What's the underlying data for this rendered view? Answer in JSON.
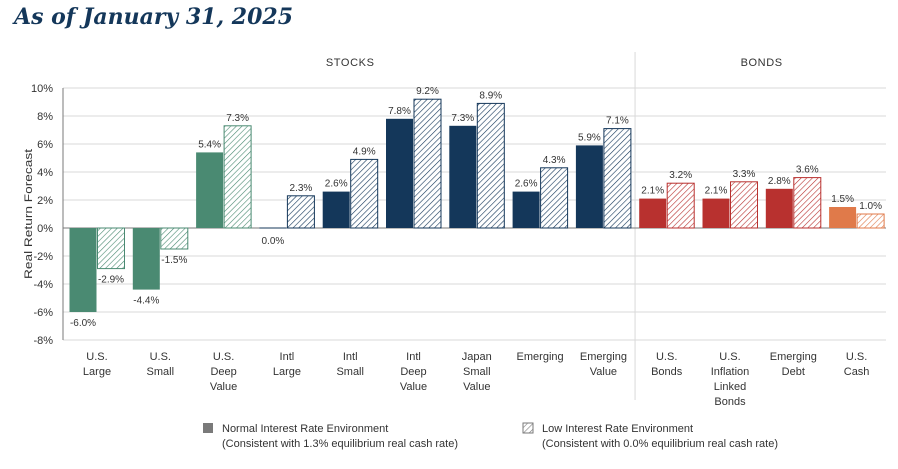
{
  "page_title": "As of January 31, 2025",
  "colors": {
    "us_equity": "#4a8a72",
    "intl_equity": "#14375a",
    "bonds": "#b8312f",
    "cash": "#e07a4a",
    "axis": "#7a7a7a",
    "grid": "#d9d9d9"
  },
  "chart_data": {
    "type": "bar",
    "title": "",
    "ylabel": "Real Return Forecast",
    "ylim": [
      -8,
      10
    ],
    "yticks": [
      "10%",
      "8%",
      "6%",
      "4%",
      "2%",
      "0%",
      "-2%",
      "-4%",
      "-6%",
      "-8%"
    ],
    "grid": true,
    "groups": [
      {
        "label": "STOCKS",
        "start": 0,
        "end": 8
      },
      {
        "label": "BONDS",
        "start": 9,
        "end": 12
      }
    ],
    "categories": [
      [
        "U.S.",
        "Large"
      ],
      [
        "U.S.",
        "Small"
      ],
      [
        "U.S.",
        "Deep",
        "Value"
      ],
      [
        "Intl",
        "Large"
      ],
      [
        "Intl",
        "Small"
      ],
      [
        "Intl",
        "Deep",
        "Value"
      ],
      [
        "Japan",
        "Small",
        "Value"
      ],
      [
        "Emerging"
      ],
      [
        "Emerging",
        "Value"
      ],
      [
        "U.S.",
        "Bonds"
      ],
      [
        "U.S.",
        "Inflation",
        "Linked",
        "Bonds"
      ],
      [
        "Emerging",
        "Debt"
      ],
      [
        "U.S.",
        "Cash"
      ]
    ],
    "category_colors": [
      "us_equity",
      "us_equity",
      "us_equity",
      "intl_equity",
      "intl_equity",
      "intl_equity",
      "intl_equity",
      "intl_equity",
      "intl_equity",
      "bonds",
      "bonds",
      "bonds",
      "cash"
    ],
    "series": [
      {
        "name": "Normal Interest Rate Environment",
        "note": "(Consistent with 1.3% equilibrium real cash rate)",
        "pattern": "solid",
        "values": [
          -6.0,
          -4.4,
          5.4,
          0.0,
          2.6,
          7.8,
          7.3,
          2.6,
          5.9,
          2.1,
          2.1,
          2.8,
          1.5
        ],
        "labels": [
          "-6.0%",
          "-4.4%",
          "5.4%",
          "0.0%",
          "2.6%",
          "7.8%",
          "7.3%",
          "2.6%",
          "5.9%",
          "2.1%",
          "2.1%",
          "2.8%",
          "1.5%"
        ]
      },
      {
        "name": "Low Interest Rate Environment",
        "note": "(Consistent with 0.0% equilibrium real cash rate)",
        "pattern": "hatched",
        "values": [
          -2.9,
          -1.5,
          7.3,
          2.3,
          4.9,
          9.2,
          8.9,
          4.3,
          7.1,
          3.2,
          3.3,
          3.6,
          1.0
        ],
        "labels": [
          "-2.9%",
          "-1.5%",
          "7.3%",
          "2.3%",
          "4.9%",
          "9.2%",
          "8.9%",
          "4.3%",
          "7.1%",
          "3.2%",
          "3.3%",
          "3.6%",
          "1.0%"
        ]
      }
    ],
    "legend": "bottom"
  }
}
